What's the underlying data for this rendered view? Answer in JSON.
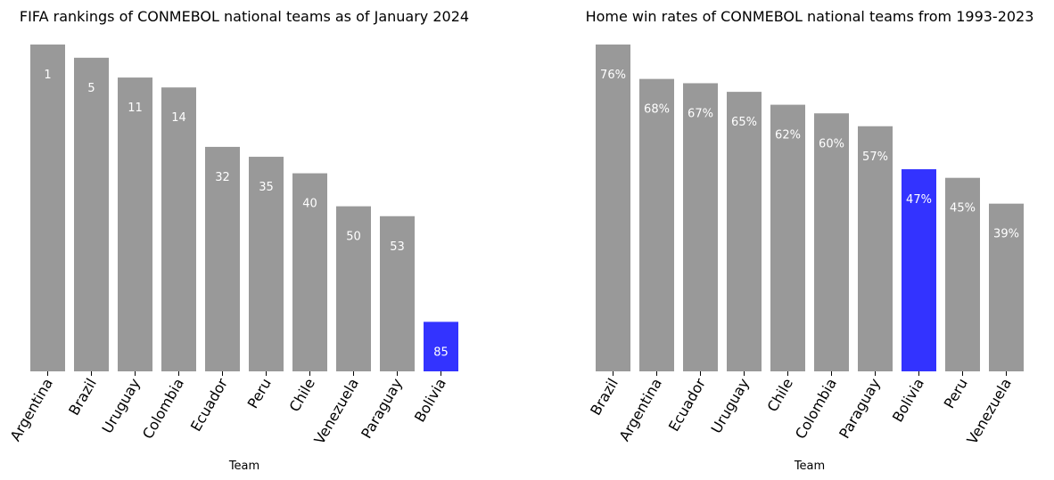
{
  "colors": {
    "bar": "#999999",
    "highlight": "#3333ff",
    "label": "#ffffff"
  },
  "chart_data": [
    {
      "type": "bar",
      "title": "FIFA rankings of CONMEBOL national teams as of January 2024",
      "xlabel": "Team",
      "ylabel": "",
      "categories": [
        "Argentina",
        "Brazil",
        "Uruguay",
        "Colombia",
        "Ecuador",
        "Peru",
        "Chile",
        "Venezuela",
        "Paraguay",
        "Bolivia"
      ],
      "values": [
        1,
        5,
        11,
        14,
        32,
        35,
        40,
        50,
        53,
        85
      ],
      "labels": [
        "1",
        "5",
        "11",
        "14",
        "32",
        "35",
        "40",
        "50",
        "53",
        "85"
      ],
      "highlight": "Bolivia",
      "y_axis": "reversed (rank 1 highest)",
      "grid": false
    },
    {
      "type": "bar",
      "title": "Home win rates of CONMEBOL national teams from 1993-2023",
      "xlabel": "Team",
      "ylabel": "",
      "categories": [
        "Brazil",
        "Argentina",
        "Ecuador",
        "Uruguay",
        "Chile",
        "Colombia",
        "Paraguay",
        "Bolivia",
        "Peru",
        "Venezuela"
      ],
      "values": [
        76,
        68,
        67,
        65,
        62,
        60,
        57,
        47,
        45,
        39
      ],
      "labels": [
        "76%",
        "68%",
        "67%",
        "65%",
        "62%",
        "60%",
        "57%",
        "47%",
        "45%",
        "39%"
      ],
      "highlight": "Bolivia",
      "grid": false
    }
  ]
}
